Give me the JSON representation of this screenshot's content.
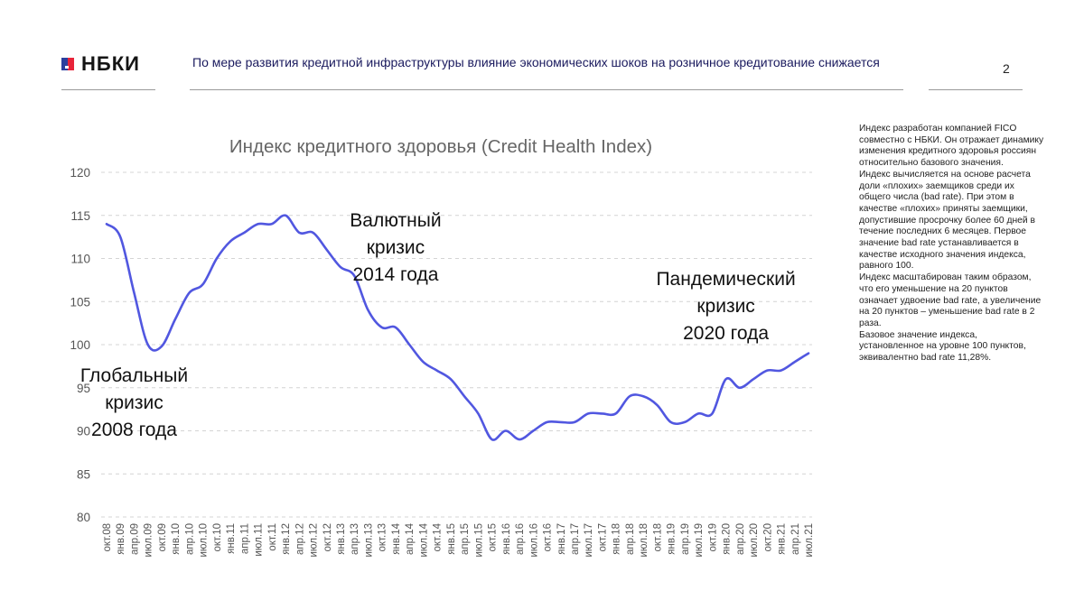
{
  "header": {
    "logo_text": "НБКИ",
    "headline": "По мере развития кредитной инфраструктуры влияние экономических шоков на розничное кредитование снижается",
    "page_number": "2"
  },
  "sidenote": {
    "paragraphs": [
      "Индекс разработан компанией FICO совместно с НБКИ. Он отражает динамику изменения кредитного здоровья россиян относительно базового значения.",
      "Индекс вычисляется на основе расчета доли «плохих» заемщиков среди их общего числа (bad rate). При этом в качестве «плохих» приняты заемщики, допустившие просрочку более 60 дней в течение последних 6 месяцев. Первое значение bad rate устанавливается в качестве исходного значения индекса, равного 100.",
      "Индекс масштабирован таким образом, что его уменьшение на 20 пунктов означает удвоение bad rate, а увеличение на 20 пунктов – уменьшение bad rate в 2 раза.",
      "Базовое значение индекса, установленное на уровне 100 пунктов, эквивалентно bad rate 11,28%."
    ]
  },
  "chart_data": {
    "type": "line",
    "title": "Индекс кредитного здоровья (Credit Health Index)",
    "xlabel": "",
    "ylabel": "",
    "ylim": [
      80,
      120
    ],
    "yticks": [
      80,
      85,
      90,
      95,
      100,
      105,
      110,
      115,
      120
    ],
    "grid": "horizontal dashed",
    "line_color": "#5157e0",
    "x": [
      "окт.08",
      "янв.09",
      "апр.09",
      "июл.09",
      "окт.09",
      "янв.10",
      "апр.10",
      "июл.10",
      "окт.10",
      "янв.11",
      "апр.11",
      "июл.11",
      "окт.11",
      "янв.12",
      "апр.12",
      "июл.12",
      "окт.12",
      "янв.13",
      "апр.13",
      "июл.13",
      "окт.13",
      "янв.14",
      "апр.14",
      "июл.14",
      "окт.14",
      "янв.15",
      "апр.15",
      "июл.15",
      "окт.15",
      "янв.16",
      "апр.16",
      "июл.16",
      "окт.16",
      "янв.17",
      "апр.17",
      "июл.17",
      "окт.17",
      "янв.18",
      "апр.18",
      "июл.18",
      "окт.18",
      "янв.19",
      "апр.19",
      "июл.19",
      "окт.19",
      "янв.20",
      "апр.20",
      "июл.20",
      "окт.20",
      "янв.21",
      "апр.21",
      "июл.21"
    ],
    "series": [
      {
        "values": [
          114,
          112.5,
          106,
          100,
          99.8,
          103,
          106,
          107,
          110,
          112,
          113,
          114,
          114,
          115,
          113,
          113,
          111,
          109,
          108,
          104,
          102,
          102,
          100,
          98,
          97,
          96,
          94,
          92,
          89,
          90,
          89,
          90,
          91,
          91,
          91,
          92,
          92,
          92,
          94,
          94,
          93,
          91,
          91,
          92,
          92,
          96,
          95,
          96,
          97,
          97,
          98,
          99
        ]
      }
    ],
    "annotations": [
      {
        "lines": [
          "Глобальный",
          "кризис",
          "2008 года"
        ],
        "x": "апр.09",
        "y": 93.3
      },
      {
        "lines": [
          "Валютный",
          "кризис",
          "2014 года"
        ],
        "x": "янв.14",
        "y": 111.3
      },
      {
        "lines": [
          "Пандемический",
          "кризис",
          "2020 года"
        ],
        "x": "янв.20",
        "y": 104.5
      }
    ]
  }
}
